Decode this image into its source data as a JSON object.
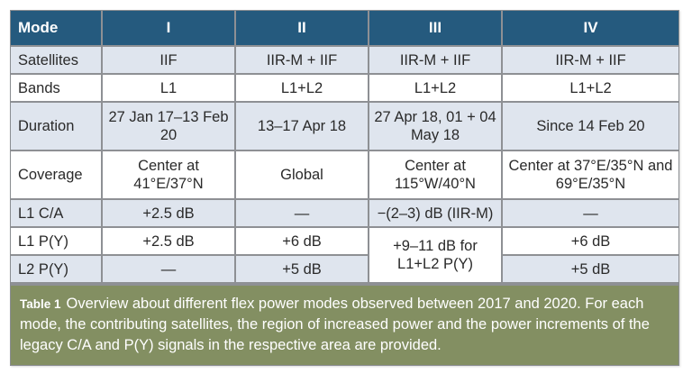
{
  "table": {
    "columns": [
      "Mode",
      "I",
      "II",
      "III",
      "IV"
    ],
    "rows": [
      {
        "label": "Satellites",
        "cells": [
          "IIF",
          "IIR-M + IIF",
          "IIR-M + IIF",
          "IIR-M + IIF"
        ]
      },
      {
        "label": "Bands",
        "cells": [
          "L1",
          "L1+L2",
          "L1+L2",
          "L1+L2"
        ]
      },
      {
        "label": "Duration",
        "cells": [
          "27 Jan 17–13 Feb 20",
          "13–17 Apr 18",
          "27 Apr 18, 01 + 04 May 18",
          "Since 14 Feb 20"
        ]
      },
      {
        "label": "Coverage",
        "cells": [
          "Center at 41°E/37°N",
          "Global",
          "Center at 115°W/40°N",
          "Center at 37°E/35°N and 69°E/35°N"
        ]
      },
      {
        "label": "L1 C/A",
        "cells": [
          "+2.5 dB",
          "—",
          "−(2–3) dB (IIR-M)",
          "—"
        ]
      },
      {
        "label": "L1 P(Y)",
        "cells": [
          "+2.5 dB",
          "+6 dB",
          "+9–11 dB for L1+L2 P(Y)",
          "+6 dB"
        ]
      },
      {
        "label": "L2 P(Y)",
        "cells": [
          "—",
          "+5 dB",
          "+5 dB"
        ]
      }
    ]
  },
  "caption": {
    "label": "Table 1",
    "text": "Overview about different flex power modes observed between 2017 and 2020. For each mode, the contributing satellites, the region of increased power and the power increments of the legacy C/A and P(Y) signals in the respective area are provided."
  },
  "colors": {
    "header_bg": "#255a7e",
    "shaded_row_bg": "#dfe5ee",
    "caption_bg": "#838f62",
    "border": "#8e9094"
  }
}
